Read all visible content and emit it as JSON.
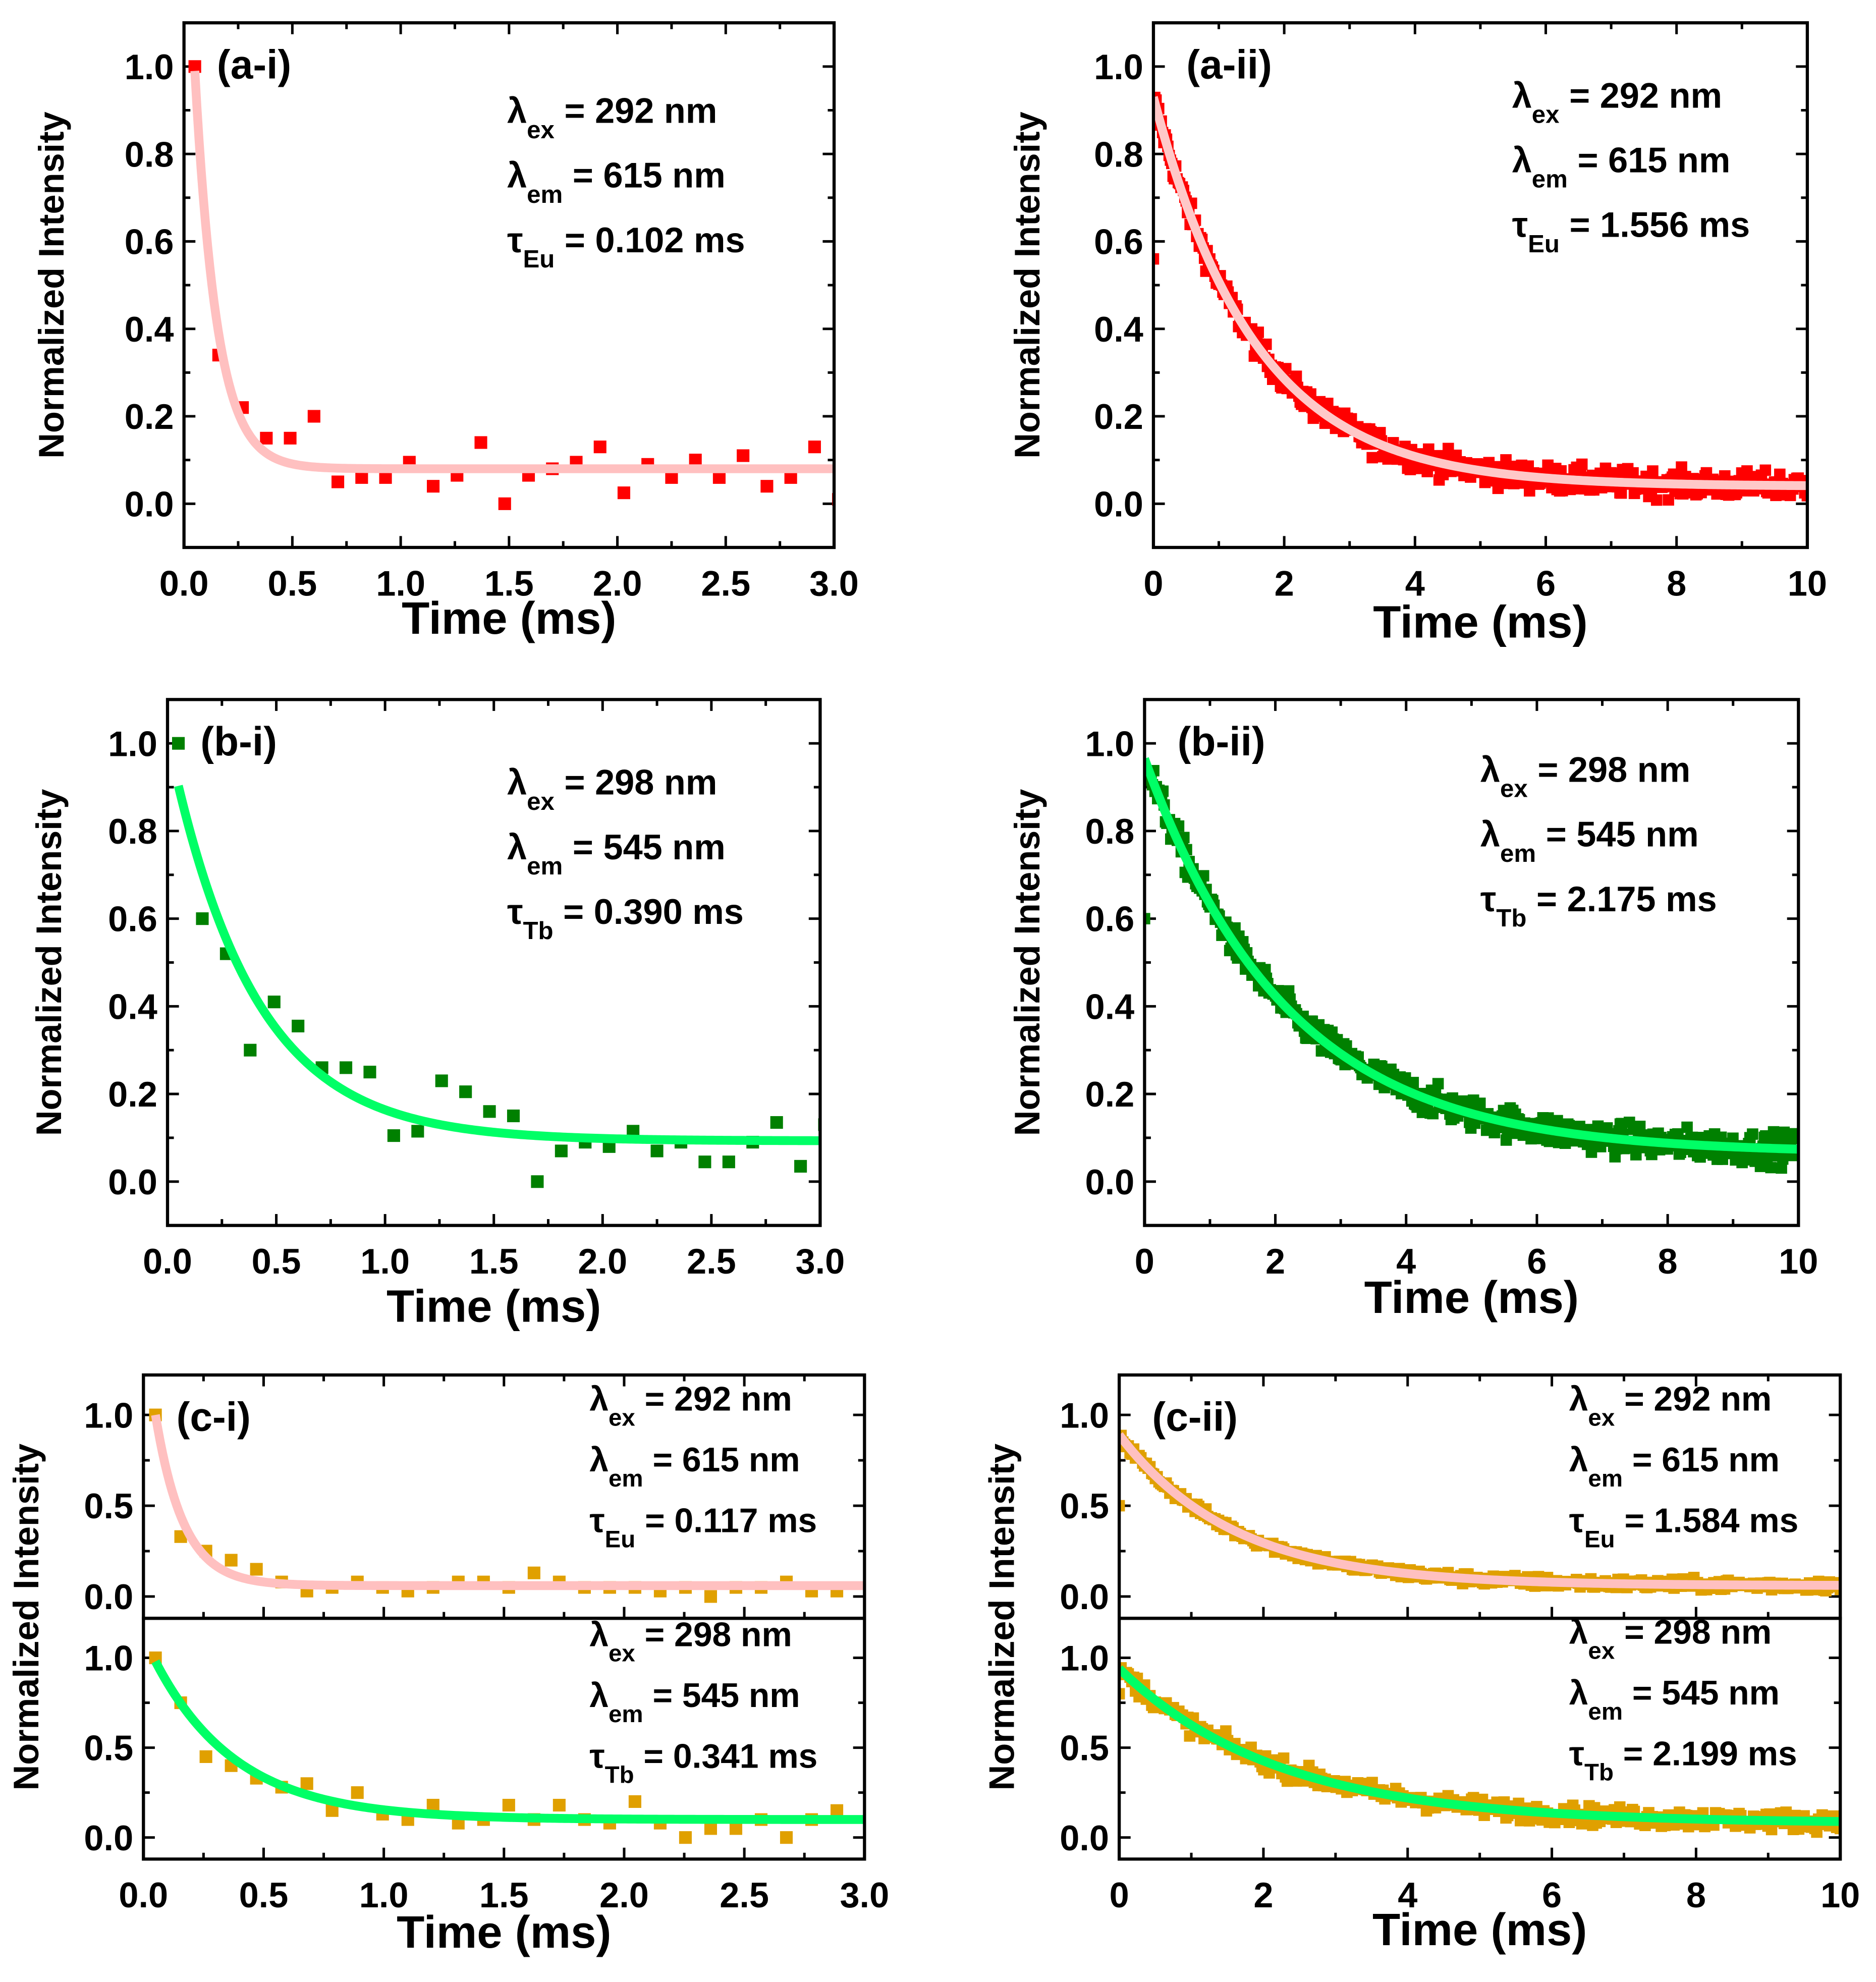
{
  "chart_data": [
    {
      "id": "a-i",
      "type": "scatter",
      "panel_label": "(a-i)",
      "xlabel": "Time (ms)",
      "ylabel": "Normalized Intensity",
      "xlim": [
        0,
        3.0
      ],
      "ylim": [
        -0.1,
        1.1
      ],
      "xticks": [
        "0.0",
        "0.5",
        "1.0",
        "1.5",
        "2.0",
        "2.5",
        "3.0"
      ],
      "yticks": [
        "0.0",
        "0.2",
        "0.4",
        "0.6",
        "0.8",
        "1.0"
      ],
      "subplots": [
        {
          "marker_color": "#ff0000",
          "fit_color": "#ffc0c0",
          "x_start": 0.05,
          "x_step": 0.11,
          "y": [
            1.0,
            0.34,
            0.22,
            0.15,
            0.15,
            0.2,
            0.05,
            0.06,
            0.06,
            0.095,
            0.04,
            0.065,
            0.14,
            0.0,
            0.065,
            0.08,
            0.095,
            0.13,
            0.025,
            0.09,
            0.06,
            0.1,
            0.06,
            0.11,
            0.04,
            0.06,
            0.13,
            0.01
          ],
          "fit": {
            "offset": 0.08,
            "amplitude": 0.91,
            "tau": 0.102,
            "t0": 0.05
          },
          "annotations": [
            {
              "sym": "λ",
              "sub": "ex",
              "value": " = 292 nm"
            },
            {
              "sym": "λ",
              "sub": "em",
              "value": " = 615 nm"
            },
            {
              "sym": "τ",
              "sub": "Eu",
              "value": " = 0.102 ms"
            }
          ]
        }
      ]
    },
    {
      "id": "a-ii",
      "type": "scatter",
      "panel_label": "(a-ii)",
      "xlabel": "Time (ms)",
      "ylabel": "Normalized Intensity",
      "xlim": [
        0,
        10
      ],
      "ylim": [
        -0.1,
        1.1
      ],
      "xticks": [
        "0",
        "2",
        "4",
        "6",
        "8",
        "10"
      ],
      "yticks": [
        "0.0",
        "0.2",
        "0.4",
        "0.6",
        "0.8",
        "1.0"
      ],
      "subplots": [
        {
          "marker_color": "#ff0000",
          "fit_color": "#ffc8c8",
          "dense": {
            "n_points": 500,
            "noise": 0.03,
            "first_value": 0.56
          },
          "fit": {
            "offset": 0.04,
            "amplitude": 0.89,
            "tau": 1.556,
            "t0": 0
          },
          "annotations": [
            {
              "sym": "λ",
              "sub": "ex",
              "value": " = 292 nm"
            },
            {
              "sym": "λ",
              "sub": "em",
              "value": " = 615 nm"
            },
            {
              "sym": "τ",
              "sub": "Eu",
              "value": " = 1.556 ms"
            }
          ]
        }
      ]
    },
    {
      "id": "b-i",
      "type": "scatter",
      "panel_label": "(b-i)",
      "xlabel": "Time (ms)",
      "ylabel": "Normalized Intensity",
      "xlim": [
        0,
        3.0
      ],
      "ylim": [
        -0.1,
        1.1
      ],
      "xticks": [
        "0.0",
        "0.5",
        "1.0",
        "1.5",
        "2.0",
        "2.5",
        "3.0"
      ],
      "yticks": [
        "0.0",
        "0.2",
        "0.4",
        "0.6",
        "0.8",
        "1.0"
      ],
      "subplots": [
        {
          "marker_color": "#008000",
          "fit_color": "#00ff66",
          "x_start": 0.05,
          "x_step": 0.11,
          "y": [
            1.0,
            0.6,
            0.52,
            0.3,
            0.41,
            0.355,
            0.26,
            0.26,
            0.25,
            0.105,
            0.115,
            0.23,
            0.205,
            0.16,
            0.15,
            0.0,
            0.07,
            0.09,
            0.08,
            0.115,
            0.07,
            0.09,
            0.045,
            0.045,
            0.09,
            0.135,
            0.035,
            0.13
          ],
          "fit": {
            "offset": 0.093,
            "amplitude": 0.81,
            "tau": 0.39,
            "t0": 0.05
          },
          "annotations": [
            {
              "sym": "λ",
              "sub": "ex",
              "value": " = 298 nm"
            },
            {
              "sym": "λ",
              "sub": "em",
              "value": " = 545 nm"
            },
            {
              "sym": "τ",
              "sub": "Tb",
              "value": " = 0.390 ms"
            }
          ]
        }
      ]
    },
    {
      "id": "b-ii",
      "type": "scatter",
      "panel_label": "(b-ii)",
      "xlabel": "Time (ms)",
      "ylabel": "Normalized Intensity",
      "xlim": [
        0,
        10
      ],
      "ylim": [
        -0.1,
        1.1
      ],
      "xticks": [
        "0",
        "2",
        "4",
        "6",
        "8",
        "10"
      ],
      "yticks": [
        "0.0",
        "0.2",
        "0.4",
        "0.6",
        "0.8",
        "1.0"
      ],
      "subplots": [
        {
          "marker_color": "#008000",
          "fit_color": "#00ff66",
          "dense": {
            "n_points": 500,
            "noise": 0.035,
            "first_value": 0.6
          },
          "fit": {
            "offset": 0.065,
            "amplitude": 0.9,
            "tau": 2.175,
            "t0": 0
          },
          "annotations": [
            {
              "sym": "λ",
              "sub": "ex",
              "value": " = 298 nm"
            },
            {
              "sym": "λ",
              "sub": "em",
              "value": " = 545 nm"
            },
            {
              "sym": "τ",
              "sub": "Tb",
              "value": " = 2.175 ms"
            }
          ]
        }
      ]
    },
    {
      "id": "c-i",
      "type": "scatter",
      "panel_label": "(c-i)",
      "xlabel": "Time (ms)",
      "ylabel": "Normalized Intensity",
      "xlim": [
        0,
        3.0
      ],
      "ylim": [
        -0.12,
        1.22
      ],
      "xticks": [
        "0.0",
        "0.5",
        "1.0",
        "1.5",
        "2.0",
        "2.5",
        "3.0"
      ],
      "yticks": [
        "0.0",
        "0.5",
        "1.0"
      ],
      "subplots": [
        {
          "marker_color": "#e0a000",
          "fit_color": "#ffc0c0",
          "x_start": 0.05,
          "x_step": 0.105,
          "y": [
            1.0,
            0.33,
            0.25,
            0.2,
            0.15,
            0.08,
            0.03,
            0.05,
            0.08,
            0.05,
            0.03,
            0.05,
            0.08,
            0.08,
            0.05,
            0.13,
            0.08,
            0.05,
            0.05,
            0.05,
            0.03,
            0.05,
            0.0,
            0.05,
            0.05,
            0.08,
            0.03,
            0.03
          ],
          "fit": {
            "offset": 0.06,
            "amplitude": 0.94,
            "tau": 0.117,
            "t0": 0.05
          },
          "annotations": [
            {
              "sym": "λ",
              "sub": "ex",
              "value": " = 292 nm"
            },
            {
              "sym": "λ",
              "sub": "em",
              "value": " = 615 nm"
            },
            {
              "sym": "τ",
              "sub": "Eu",
              "value": " = 0.117 ms"
            }
          ]
        },
        {
          "marker_color": "#e0a000",
          "fit_color": "#00ff66",
          "x_start": 0.05,
          "x_step": 0.105,
          "y": [
            1.0,
            0.75,
            0.45,
            0.4,
            0.33,
            0.28,
            0.3,
            0.15,
            0.25,
            0.13,
            0.1,
            0.18,
            0.08,
            0.1,
            0.18,
            0.1,
            0.18,
            0.1,
            0.08,
            0.2,
            0.08,
            0.0,
            0.05,
            0.05,
            0.1,
            0.0,
            0.1,
            0.15
          ],
          "fit": {
            "offset": 0.1,
            "amplitude": 0.88,
            "tau": 0.341,
            "t0": 0.05
          },
          "annotations": [
            {
              "sym": "λ",
              "sub": "ex",
              "value": " = 298 nm"
            },
            {
              "sym": "λ",
              "sub": "em",
              "value": " = 545 nm"
            },
            {
              "sym": "τ",
              "sub": "Tb",
              "value": " = 0.341 ms"
            }
          ]
        }
      ]
    },
    {
      "id": "c-ii",
      "type": "scatter",
      "panel_label": "(c-ii)",
      "xlabel": "Time (ms)",
      "ylabel": "Normalized Intensity",
      "xlim": [
        0,
        10
      ],
      "ylim": [
        -0.12,
        1.22
      ],
      "xticks": [
        "0",
        "2",
        "4",
        "6",
        "8",
        "10"
      ],
      "yticks": [
        "0.0",
        "0.5",
        "1.0"
      ],
      "subplots": [
        {
          "marker_color": "#e0a000",
          "fit_color": "#ffc0c0",
          "dense": {
            "n_points": 400,
            "noise": 0.03,
            "first_value": 0.5
          },
          "fit": {
            "offset": 0.06,
            "amplitude": 0.83,
            "tau": 1.584,
            "t0": 0
          },
          "annotations": [
            {
              "sym": "λ",
              "sub": "ex",
              "value": " = 292 nm"
            },
            {
              "sym": "λ",
              "sub": "em",
              "value": " = 615 nm"
            },
            {
              "sym": "τ",
              "sub": "Eu",
              "value": " = 1.584 ms"
            }
          ]
        },
        {
          "marker_color": "#e0a000",
          "fit_color": "#00ff66",
          "dense": {
            "n_points": 400,
            "noise": 0.05,
            "first_value": 0.8
          },
          "fit": {
            "offset": 0.08,
            "amplitude": 0.86,
            "tau": 2.199,
            "t0": 0
          },
          "annotations": [
            {
              "sym": "λ",
              "sub": "ex",
              "value": " = 298 nm"
            },
            {
              "sym": "λ",
              "sub": "em",
              "value": " = 545 nm"
            },
            {
              "sym": "τ",
              "sub": "Tb",
              "value": " = 2.199 ms"
            }
          ]
        }
      ]
    }
  ]
}
